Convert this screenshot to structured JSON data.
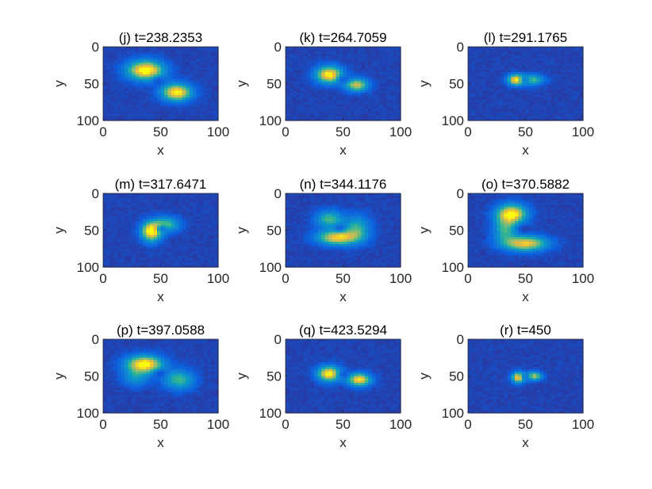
{
  "chart_data": [
    {
      "type": "heatmap",
      "title": "(j) t=238.2353",
      "xlabel": "x",
      "ylabel": "y",
      "xlim": [
        0,
        100
      ],
      "ylim": [
        0,
        100
      ],
      "y_reversed": true,
      "xticks": [
        "0",
        "50",
        "100"
      ],
      "yticks": [
        "0",
        "50",
        "100"
      ],
      "colormap": "parula",
      "blobs": [
        {
          "x": 37,
          "y": 32,
          "sx": 11,
          "sy": 9,
          "intensity": 1.0
        },
        {
          "x": 64,
          "y": 62,
          "sx": 9,
          "sy": 8,
          "intensity": 0.95
        }
      ],
      "hole": {
        "x": 48,
        "y": 46
      }
    },
    {
      "type": "heatmap",
      "title": "(k) t=264.7059",
      "xlabel": "x",
      "ylabel": "y",
      "xlim": [
        0,
        100
      ],
      "ylim": [
        0,
        100
      ],
      "y_reversed": true,
      "xticks": [
        "0",
        "50",
        "100"
      ],
      "yticks": [
        "0",
        "50",
        "100"
      ],
      "colormap": "parula",
      "blobs": [
        {
          "x": 38,
          "y": 38,
          "sx": 8,
          "sy": 8,
          "intensity": 0.95
        },
        {
          "x": 62,
          "y": 52,
          "sx": 7,
          "sy": 6,
          "intensity": 0.75
        }
      ],
      "hole": {
        "x": 50,
        "y": 44
      }
    },
    {
      "type": "heatmap",
      "title": "(l) t=291.1765",
      "xlabel": "x",
      "ylabel": "y",
      "xlim": [
        0,
        100
      ],
      "ylim": [
        0,
        100
      ],
      "y_reversed": true,
      "xticks": [
        "0",
        "50",
        "100"
      ],
      "yticks": [
        "0",
        "50",
        "100"
      ],
      "colormap": "parula",
      "blobs": [
        {
          "x": 42,
          "y": 45,
          "sx": 5,
          "sy": 5,
          "intensity": 0.95
        },
        {
          "x": 56,
          "y": 45,
          "sx": 7,
          "sy": 5,
          "intensity": 0.55
        }
      ],
      "hole": {
        "x": 49,
        "y": 45
      }
    },
    {
      "type": "heatmap",
      "title": "(m) t=317.6471",
      "xlabel": "x",
      "ylabel": "y",
      "xlim": [
        0,
        100
      ],
      "ylim": [
        0,
        100
      ],
      "y_reversed": true,
      "xticks": [
        "0",
        "50",
        "100"
      ],
      "yticks": [
        "0",
        "50",
        "100"
      ],
      "colormap": "parula",
      "blobs": [
        {
          "x": 42,
          "y": 52,
          "sx": 6,
          "sy": 9,
          "intensity": 1.0
        },
        {
          "x": 55,
          "y": 42,
          "sx": 8,
          "sy": 7,
          "intensity": 0.55
        }
      ],
      "hole": {
        "x": 51,
        "y": 48
      }
    },
    {
      "type": "heatmap",
      "title": "(n) t=344.1176",
      "xlabel": "x",
      "ylabel": "y",
      "xlim": [
        0,
        100
      ],
      "ylim": [
        0,
        100
      ],
      "y_reversed": true,
      "xticks": [
        "0",
        "50",
        "100"
      ],
      "yticks": [
        "0",
        "50",
        "100"
      ],
      "colormap": "parula",
      "blobs": [
        {
          "x": 45,
          "y": 60,
          "sx": 12,
          "sy": 7,
          "intensity": 0.85
        },
        {
          "x": 38,
          "y": 35,
          "sx": 8,
          "sy": 8,
          "intensity": 0.55
        },
        {
          "x": 62,
          "y": 48,
          "sx": 8,
          "sy": 12,
          "intensity": 0.5
        }
      ],
      "hole": {
        "x": 47,
        "y": 47
      }
    },
    {
      "type": "heatmap",
      "title": "(o) t=370.5882",
      "xlabel": "x",
      "ylabel": "y",
      "xlim": [
        0,
        100
      ],
      "ylim": [
        0,
        100
      ],
      "y_reversed": true,
      "xticks": [
        "0",
        "50",
        "100"
      ],
      "yticks": [
        "0",
        "50",
        "100"
      ],
      "colormap": "parula",
      "blobs": [
        {
          "x": 38,
          "y": 28,
          "sx": 9,
          "sy": 9,
          "intensity": 0.95
        },
        {
          "x": 50,
          "y": 68,
          "sx": 13,
          "sy": 7,
          "intensity": 0.85
        },
        {
          "x": 32,
          "y": 50,
          "sx": 7,
          "sy": 12,
          "intensity": 0.5
        }
      ],
      "hole": {
        "x": 48,
        "y": 48
      }
    },
    {
      "type": "heatmap",
      "title": "(p) t=397.0588",
      "xlabel": "x",
      "ylabel": "y",
      "xlim": [
        0,
        100
      ],
      "ylim": [
        0,
        100
      ],
      "y_reversed": true,
      "xticks": [
        "0",
        "50",
        "100"
      ],
      "yticks": [
        "0",
        "50",
        "100"
      ],
      "colormap": "parula",
      "blobs": [
        {
          "x": 36,
          "y": 34,
          "sx": 11,
          "sy": 8,
          "intensity": 1.0
        },
        {
          "x": 66,
          "y": 55,
          "sx": 9,
          "sy": 9,
          "intensity": 0.55
        },
        {
          "x": 28,
          "y": 52,
          "sx": 8,
          "sy": 8,
          "intensity": 0.35
        }
      ],
      "hole": {
        "x": 50,
        "y": 46
      }
    },
    {
      "type": "heatmap",
      "title": "(q) t=423.5294",
      "xlabel": "x",
      "ylabel": "y",
      "xlim": [
        0,
        100
      ],
      "ylim": [
        0,
        100
      ],
      "y_reversed": true,
      "xticks": [
        "0",
        "50",
        "100"
      ],
      "yticks": [
        "0",
        "50",
        "100"
      ],
      "colormap": "parula",
      "blobs": [
        {
          "x": 38,
          "y": 47,
          "sx": 7,
          "sy": 7,
          "intensity": 0.95
        },
        {
          "x": 64,
          "y": 55,
          "sx": 7,
          "sy": 6,
          "intensity": 0.9
        }
      ],
      "hole": {
        "x": 50,
        "y": 48
      }
    },
    {
      "type": "heatmap",
      "title": "(r) t=450",
      "xlabel": "x",
      "ylabel": "y",
      "xlim": [
        0,
        100
      ],
      "ylim": [
        0,
        100
      ],
      "y_reversed": true,
      "xticks": [
        "0",
        "50",
        "100"
      ],
      "yticks": [
        "0",
        "50",
        "100"
      ],
      "colormap": "parula",
      "blobs": [
        {
          "x": 44,
          "y": 52,
          "sx": 4,
          "sy": 5,
          "intensity": 0.95
        },
        {
          "x": 57,
          "y": 50,
          "sx": 5,
          "sy": 4,
          "intensity": 0.75
        }
      ],
      "hole": {
        "x": 50,
        "y": 51
      }
    }
  ]
}
